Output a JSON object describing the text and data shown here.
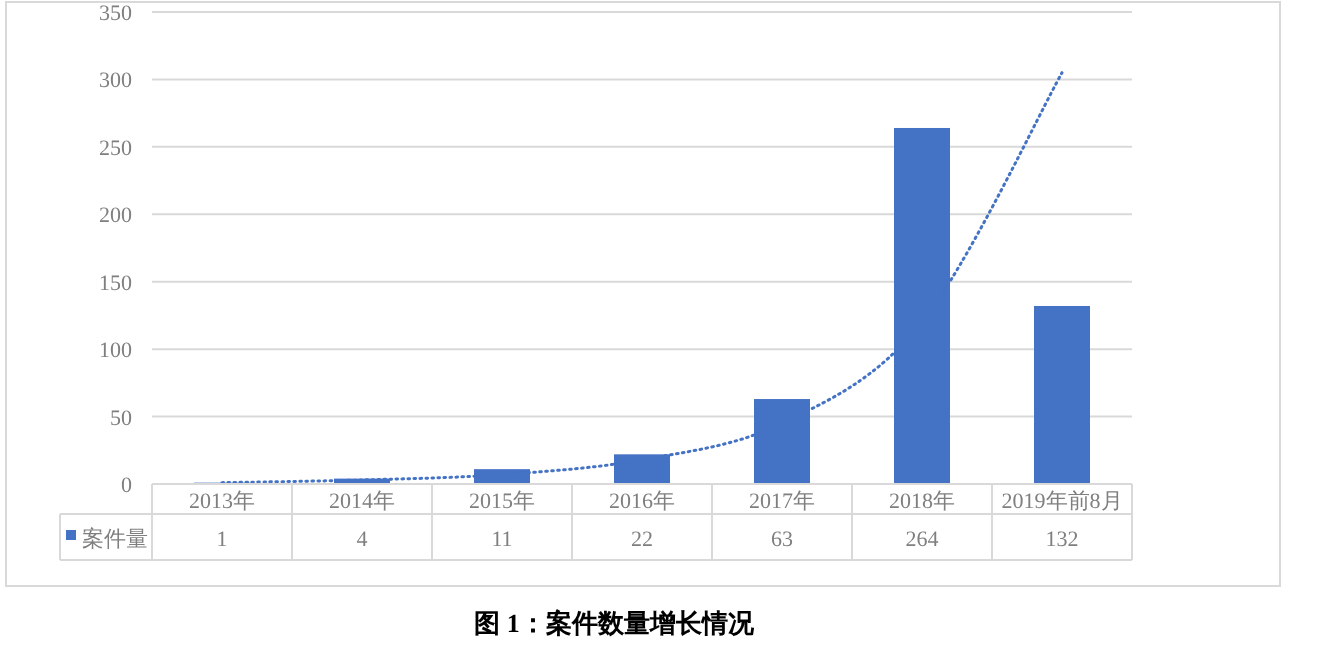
{
  "chart_data": {
    "type": "bar",
    "title": "图 1：案件数量增长情况",
    "categories": [
      "2013年",
      "2014年",
      "2015年",
      "2016年",
      "2017年",
      "2018年",
      "2019年前8月"
    ],
    "series": [
      {
        "name": "案件量",
        "color": "#4472c4",
        "values": [
          1,
          4,
          11,
          22,
          63,
          264,
          132
        ],
        "value_labels": [
          "1",
          "4",
          "11",
          "22",
          "63",
          "264",
          "132"
        ]
      },
      {
        "type": "line",
        "color": "#4472c4",
        "line_style": "dotted",
        "values": [
          1,
          3,
          7,
          18,
          45,
          120,
          305
        ]
      }
    ],
    "ylim": [
      0,
      350
    ],
    "yticks": [
      0,
      50,
      100,
      150,
      200,
      250,
      300,
      350
    ],
    "grid": "y",
    "legend": "bottom"
  }
}
